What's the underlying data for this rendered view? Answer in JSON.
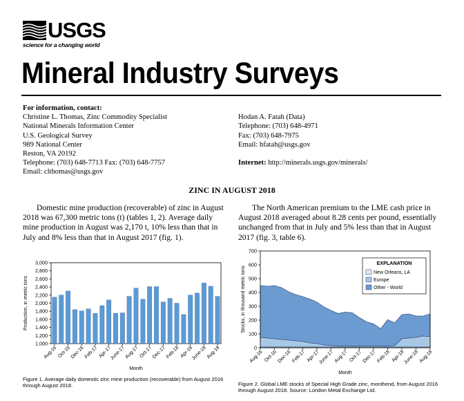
{
  "header": {
    "logo_text": "USGS",
    "tagline": "science for a changing world",
    "title": "Mineral Industry Surveys"
  },
  "contact": {
    "heading": "For information, contact:",
    "left": [
      "Christine L. Thomas, Zinc Commodity Specialist",
      "National Minerals Information Center",
      "U.S. Geological Survey",
      "989 National Center",
      "Reston, VA 20192",
      "Telephone: (703) 648-7713 Fax: (703) 648-7757",
      "Email: clthomas@usgs.gov"
    ],
    "right": [
      "Hodan A. Fatah (Data)",
      "Telephone: (703) 648-4971",
      "Fax: (703) 648-7975",
      "Email: hfatah@usgs.gov"
    ],
    "internet_label": "Internet:",
    "internet_url": "http://minerals.usgs.gov/minerals/"
  },
  "report": {
    "section_title": "ZINC IN AUGUST 2018",
    "para1": "Domestic mine production (recoverable) of zinc in August 2018 was 67,300 metric tons (t) (tables 1, 2). Average daily mine production in August was 2,170 t, 10% less than that in July and 8% less than that in August 2017 (fig. 1).",
    "para2": "The North American premium to the LME cash price in August 2018 averaged about 8.28 cents per pound, essentially unchanged from that in July and 5% less than that in August 2017 (fig. 3, table 6).",
    "fig1_caption": "Figure 1. Average daily domestic zinc mine production (recoverable) from August 2016 through August 2018.",
    "fig2_caption": "Figure 2. Global LME stocks of Special High Grade zinc, monthend, from August 2016 through August 2018. Source: London Metal Exchange Ltd."
  },
  "chart_data": [
    {
      "type": "bar",
      "title": "",
      "xlabel": "Month",
      "ylabel": "Production, in metric tons",
      "ylim": [
        1000,
        3000
      ],
      "yticks": [
        "1,000",
        "1,200",
        "1,400",
        "1,600",
        "1,800",
        "2,000",
        "2,200",
        "2,400",
        "2,600",
        "2,800",
        "3,000"
      ],
      "xtick_labels": [
        "Aug-16",
        "Oct-16",
        "Dec-16",
        "Feb-17",
        "Apr-17",
        "June-17",
        "Aug-17",
        "Oct-17",
        "Dec-17",
        "Feb-18",
        "Apr-18",
        "June-18",
        "Aug-18"
      ],
      "categories": [
        "Aug-16",
        "Sep-16",
        "Oct-16",
        "Nov-16",
        "Dec-16",
        "Jan-17",
        "Feb-17",
        "Mar-17",
        "Apr-17",
        "May-17",
        "June-17",
        "Jul-17",
        "Aug-17",
        "Sep-17",
        "Oct-17",
        "Nov-17",
        "Dec-17",
        "Jan-18",
        "Feb-18",
        "Mar-18",
        "Apr-18",
        "May-18",
        "June-18",
        "Jul-18",
        "Aug-18"
      ],
      "values": [
        2150,
        2200,
        2300,
        1840,
        1810,
        1860,
        1750,
        1940,
        2080,
        1750,
        1760,
        2170,
        2370,
        2100,
        2410,
        2410,
        2030,
        2120,
        2000,
        1720,
        2200,
        2250,
        2500,
        2420,
        2170
      ],
      "color": "#5b9bd5"
    },
    {
      "type": "area",
      "title": "",
      "xlabel": "Month",
      "ylabel": "Stocks, in thousand metric tons",
      "ylim": [
        0,
        700
      ],
      "yticks": [
        "0",
        "100",
        "200",
        "300",
        "400",
        "500",
        "600",
        "700"
      ],
      "xtick_labels": [
        "Aug-16",
        "Oct-16",
        "Dec-16",
        "Feb-17",
        "Apr-17",
        "June-17",
        "Aug-17",
        "Oct-17",
        "Dec-17",
        "Feb-18",
        "Apr-18",
        "June-18",
        "Aug-18"
      ],
      "legend_title": "EXPLANATION",
      "legend_placement": "top-right",
      "series": [
        {
          "name": "New Orleans, LA",
          "color": "#dce9f5",
          "values": [
            5,
            5,
            5,
            5,
            5,
            5,
            5,
            5,
            5,
            5,
            5,
            5,
            5,
            5,
            5,
            5,
            5,
            5,
            5,
            5,
            5,
            5,
            5,
            5,
            5
          ]
        },
        {
          "name": "Europe",
          "color": "#a9c8e6",
          "values": [
            70,
            65,
            60,
            55,
            50,
            45,
            40,
            30,
            25,
            15,
            10,
            8,
            8,
            8,
            8,
            8,
            8,
            8,
            8,
            10,
            60,
            65,
            70,
            80,
            75
          ]
        },
        {
          "name": "Other - World",
          "color": "#6b9bd1",
          "values": [
            375,
            375,
            385,
            375,
            350,
            335,
            325,
            318,
            300,
            275,
            255,
            235,
            245,
            240,
            205,
            175,
            160,
            125,
            190,
            165,
            175,
            175,
            155,
            145,
            165
          ]
        }
      ]
    }
  ]
}
